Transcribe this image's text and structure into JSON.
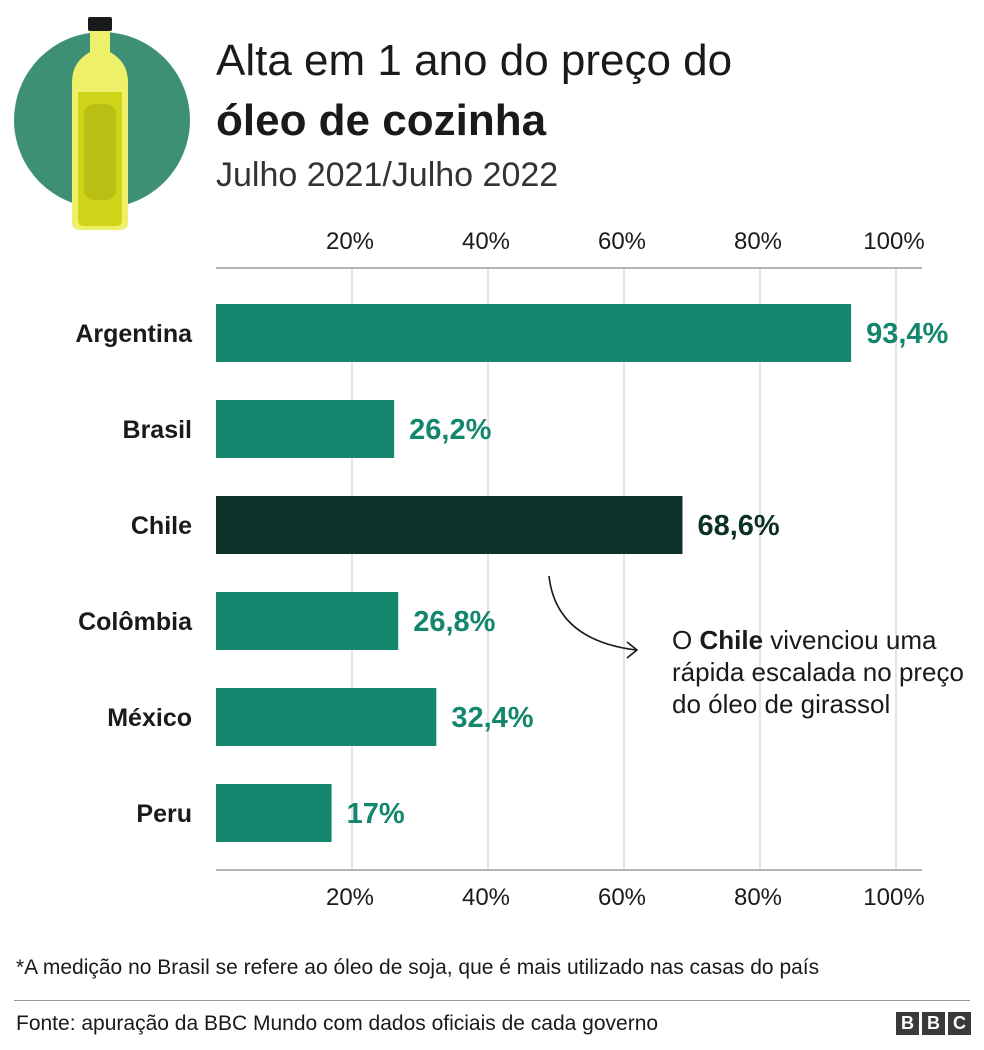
{
  "header": {
    "title_line1": "Alta em 1 ano do preço do",
    "title_line2": "óleo de cozinha",
    "subtitle": "Julho 2021/Julho 2022"
  },
  "chart_data": {
    "type": "bar",
    "orientation": "horizontal",
    "categories": [
      "Argentina",
      "Brasil",
      "Chile",
      "Colômbia",
      "México",
      "Peru"
    ],
    "values": [
      93.4,
      26.2,
      68.6,
      26.8,
      32.4,
      17
    ],
    "value_labels": [
      "93,4%",
      "26,2%",
      "68,6%",
      "26,8%",
      "32,4%",
      "17%"
    ],
    "highlight": "Chile",
    "xlim": [
      0,
      100
    ],
    "x_ticks": [
      20,
      40,
      60,
      80,
      100
    ],
    "x_tick_labels": [
      "20%",
      "40%",
      "60%",
      "80%",
      "100%"
    ],
    "grid": true,
    "axis_position": "top and bottom"
  },
  "annotation": {
    "prefix": "O",
    "bold": "Chile",
    "rest": "vivenciou uma rápida escalada no preço do óleo de girassol"
  },
  "footnote": "*A medição no Brasil se refere ao óleo de soja, que é mais utilizado nas casas do país",
  "source": "Fonte: apuração da BBC Mundo com dados oficiais de cada governo",
  "logo": {
    "letters": [
      "B",
      "B",
      "C"
    ]
  },
  "colors": {
    "bar": "#14866d",
    "highlight_bar": "#0b3128",
    "label": "#14866d",
    "highlight_label": "#0b3128",
    "icon_circle": "#3d9076",
    "bottle_oil": "#cfd418",
    "bottle_glass": "#eef06a",
    "bottle_cap": "#1a1a1a"
  }
}
